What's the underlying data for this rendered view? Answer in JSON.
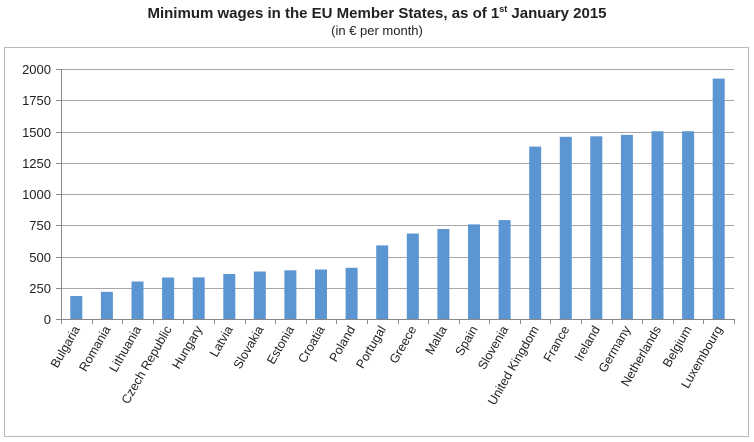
{
  "chart_data": {
    "type": "bar",
    "title_main": "Minimum wages in the EU Member States, as of 1",
    "title_sup": "st",
    "title_end": " January 2015",
    "subtitle": "(in € per month)",
    "categories": [
      "Bulgaria",
      "Romania",
      "Lithuania",
      "Czech Republic",
      "Hungary",
      "Latvia",
      "Slovakia",
      "Estonia",
      "Croatia",
      "Poland",
      "Portugal",
      "Greece",
      "Malta",
      "Spain",
      "Slovenia",
      "United Kingdom",
      "France",
      "Ireland",
      "Germany",
      "Netherlands",
      "Belgium",
      "Luxembourg"
    ],
    "values": [
      184,
      218,
      300,
      332,
      333,
      360,
      380,
      390,
      396,
      410,
      589,
      684,
      720,
      757,
      791,
      1379,
      1458,
      1462,
      1473,
      1502,
      1502,
      1923
    ],
    "ylim": [
      0,
      2000
    ],
    "yticks": [
      "0",
      "250",
      "500",
      "750",
      "1000",
      "1250",
      "1500",
      "1750",
      "2000"
    ],
    "grid": true,
    "legend": "none",
    "bar_color": "#5b95d2"
  }
}
